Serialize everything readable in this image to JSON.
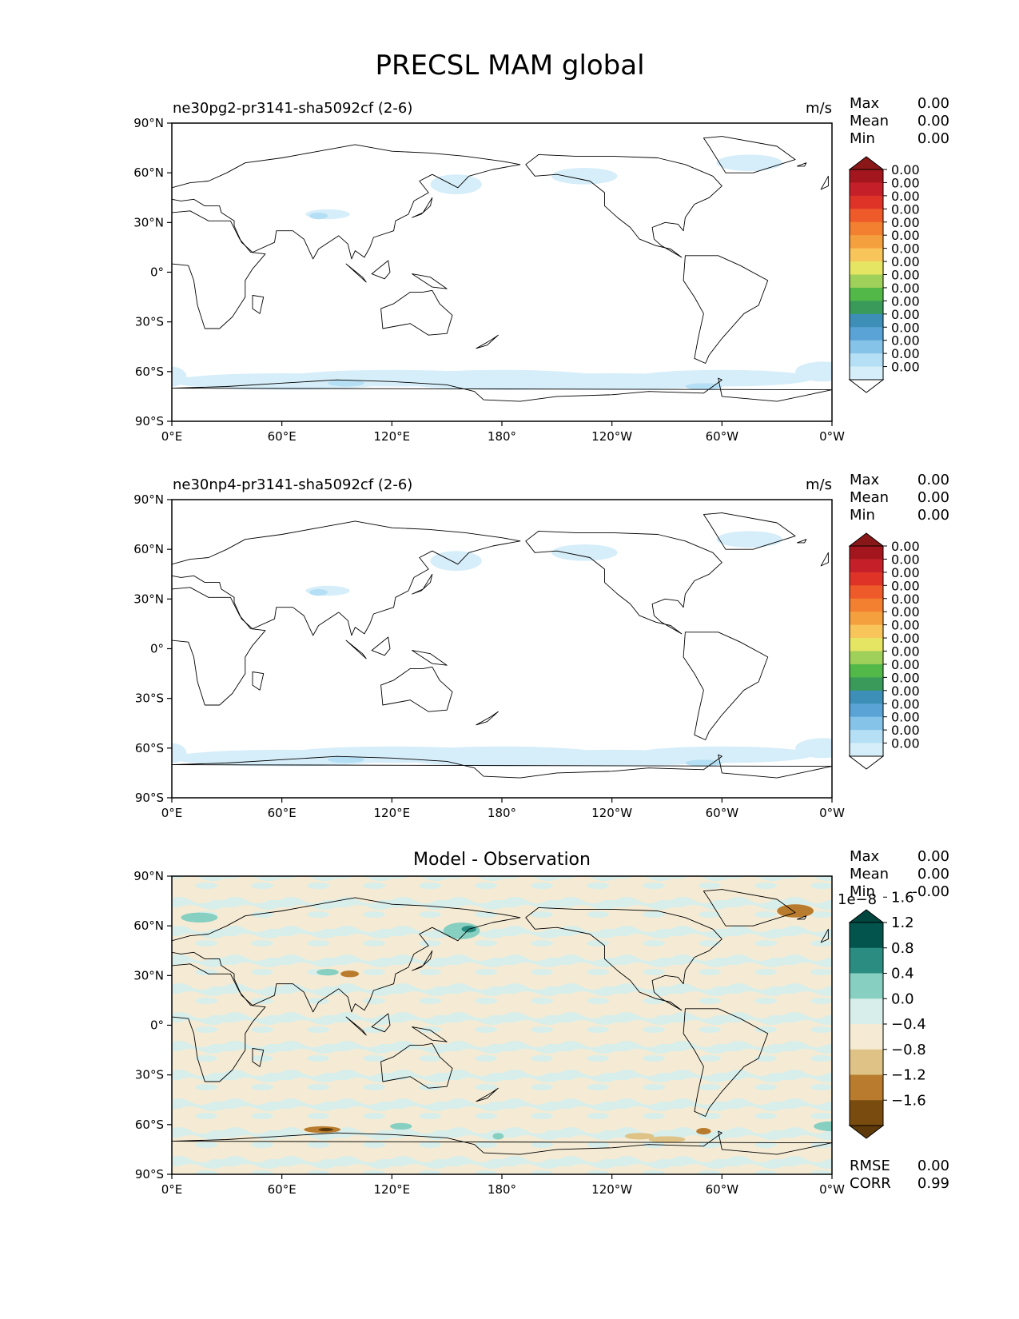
{
  "figure": {
    "title": "PRECSL MAM global"
  },
  "axes": {
    "lat_labels": [
      "90°N",
      "60°N",
      "30°N",
      "0°",
      "30°S",
      "60°S",
      "90°S"
    ],
    "lon_labels": [
      "0°E",
      "60°E",
      "120°E",
      "180°",
      "120°W",
      "60°W",
      "0°W"
    ]
  },
  "panels": [
    {
      "title_left": "ne30pg2-pr3141-sha5092cf (2-6)",
      "units": "m/s",
      "stats": [
        {
          "label": "Max",
          "value": "0.00"
        },
        {
          "label": "Mean",
          "value": "0.00"
        },
        {
          "label": "Min",
          "value": "0.00"
        }
      ],
      "colorbar": {
        "colors": [
          "#ffffff",
          "#d6eef9",
          "#b5dff4",
          "#86c3e9",
          "#5aa3d6",
          "#3e8fb8",
          "#3a9a5a",
          "#52b848",
          "#9fd05a",
          "#e5e563",
          "#f8c55a",
          "#f5a03f",
          "#f28030",
          "#ee5a2a",
          "#df3327",
          "#c5202a",
          "#a3161e",
          "#8a1717"
        ],
        "labels": [
          "0.00",
          "0.00",
          "0.00",
          "0.00",
          "0.00",
          "0.00",
          "0.00",
          "0.00",
          "0.00",
          "0.00",
          "0.00",
          "0.00",
          "0.00",
          "0.00",
          "0.00",
          "0.00"
        ]
      }
    },
    {
      "title_left": "ne30np4-pr3141-sha5092cf (2-6)",
      "units": "m/s",
      "stats": [
        {
          "label": "Max",
          "value": "0.00"
        },
        {
          "label": "Mean",
          "value": "0.00"
        },
        {
          "label": "Min",
          "value": "0.00"
        }
      ],
      "colorbar": {
        "colors": [
          "#ffffff",
          "#d6eef9",
          "#b5dff4",
          "#86c3e9",
          "#5aa3d6",
          "#3e8fb8",
          "#3a9a5a",
          "#52b848",
          "#9fd05a",
          "#e5e563",
          "#f8c55a",
          "#f5a03f",
          "#f28030",
          "#ee5a2a",
          "#df3327",
          "#c5202a",
          "#a3161e",
          "#8a1717"
        ],
        "labels": [
          "0.00",
          "0.00",
          "0.00",
          "0.00",
          "0.00",
          "0.00",
          "0.00",
          "0.00",
          "0.00",
          "0.00",
          "0.00",
          "0.00",
          "0.00",
          "0.00",
          "0.00",
          "0.00"
        ]
      }
    },
    {
      "title_center": "Model - Observation",
      "stats": [
        {
          "label": "Max",
          "value": "0.00"
        },
        {
          "label": "Mean",
          "value": "0.00"
        },
        {
          "label": "Min",
          "value": "-0.00"
        }
      ],
      "colorbar": {
        "scale_label": "1e−8",
        "colors": [
          "#5e3a0b",
          "#7a4b0e",
          "#b97c2e",
          "#dfc386",
          "#f5ebd4",
          "#d8eeea",
          "#86cfc1",
          "#2b8c82",
          "#02544d",
          "#01453f"
        ],
        "labels": [
          "−1.6",
          "−1.2",
          "−0.8",
          "−0.4",
          "0.0",
          "0.4",
          "0.8",
          "1.2",
          "1.6"
        ]
      },
      "bottom_stats": [
        {
          "label": "RMSE",
          "value": "0.00"
        },
        {
          "label": "CORR",
          "value": "0.99"
        }
      ]
    }
  ],
  "chart_data": [
    {
      "type": "heatmap",
      "title": "ne30pg2-pr3141-sha5092cf (2-6)",
      "units": "m/s",
      "x_ticks": [
        "0°E",
        "60°E",
        "120°E",
        "180°",
        "120°W",
        "60°W",
        "0°W"
      ],
      "y_ticks": [
        "90°N",
        "60°N",
        "30°N",
        "0°",
        "30°S",
        "60°S",
        "90°S"
      ],
      "xlim": [
        0,
        360
      ],
      "ylim": [
        -90,
        90
      ],
      "max": 0.0,
      "mean": 0.0,
      "min": 0.0,
      "features": [
        {
          "lon": [
            0,
            360
          ],
          "lat": [
            -75,
            -55
          ],
          "level": 1
        },
        {
          "lon": [
            140,
            175
          ],
          "lat": [
            42,
            60
          ],
          "level": 1
        },
        {
          "lon": [
            210,
            240
          ],
          "lat": [
            50,
            62
          ],
          "level": 1
        },
        {
          "lon": [
            300,
            335
          ],
          "lat": [
            60,
            75
          ],
          "level": 1
        },
        {
          "lon": [
            70,
            95
          ],
          "lat": [
            30,
            38
          ],
          "level": 2
        }
      ]
    },
    {
      "type": "heatmap",
      "title": "ne30np4-pr3141-sha5092cf (2-6)",
      "units": "m/s",
      "x_ticks": [
        "0°E",
        "60°E",
        "120°E",
        "180°",
        "120°W",
        "60°W",
        "0°W"
      ],
      "y_ticks": [
        "90°N",
        "60°N",
        "30°N",
        "0°",
        "30°S",
        "60°S",
        "90°S"
      ],
      "xlim": [
        0,
        360
      ],
      "ylim": [
        -90,
        90
      ],
      "max": 0.0,
      "mean": 0.0,
      "min": 0.0,
      "features": [
        {
          "lon": [
            0,
            360
          ],
          "lat": [
            -75,
            -55
          ],
          "level": 1
        },
        {
          "lon": [
            140,
            175
          ],
          "lat": [
            42,
            60
          ],
          "level": 1
        },
        {
          "lon": [
            210,
            240
          ],
          "lat": [
            50,
            62
          ],
          "level": 1
        },
        {
          "lon": [
            300,
            335
          ],
          "lat": [
            60,
            75
          ],
          "level": 1
        },
        {
          "lon": [
            70,
            95
          ],
          "lat": [
            30,
            38
          ],
          "level": 2
        }
      ]
    },
    {
      "type": "heatmap",
      "title": "Model - Observation",
      "x_ticks": [
        "0°E",
        "60°E",
        "120°E",
        "180°",
        "120°W",
        "60°W",
        "0°W"
      ],
      "y_ticks": [
        "90°N",
        "60°N",
        "30°N",
        "0°",
        "30°S",
        "60°S",
        "90°S"
      ],
      "xlim": [
        0,
        360
      ],
      "ylim": [
        -90,
        90
      ],
      "scale": "1e-8",
      "levels": [
        -1.6,
        -1.2,
        -0.8,
        -0.4,
        0.0,
        0.4,
        0.8,
        1.2,
        1.6
      ],
      "max": 0.0,
      "mean": 0.0,
      "min": -0.0,
      "rmse": 0.0,
      "corr": 0.99
    }
  ]
}
